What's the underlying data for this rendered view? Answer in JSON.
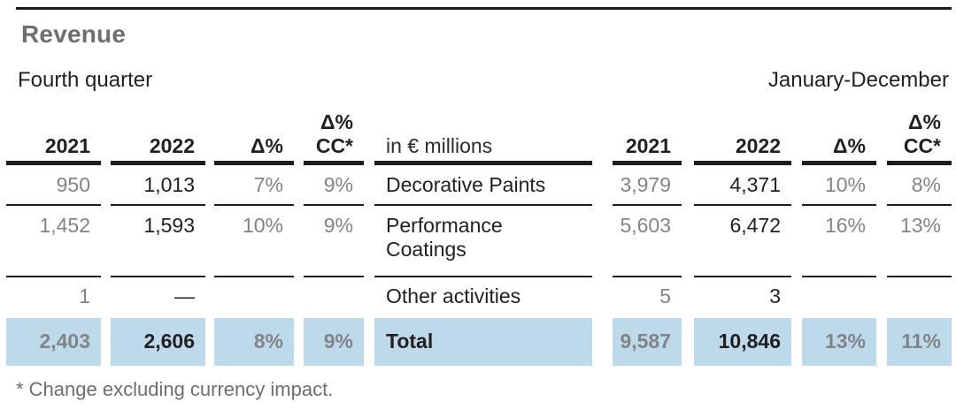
{
  "page": {
    "title": "Revenue",
    "left_period": "Fourth quarter",
    "right_period": "January-December",
    "footnote": "* Change excluding currency impact."
  },
  "colors": {
    "highlight_blue": "#bddaeb",
    "muted_gray_text": "#838487",
    "black_text": "#231f20",
    "title_gray": "#6d6e71"
  },
  "table": {
    "unit_label": "in € millions",
    "headers": {
      "y2021": "2021",
      "y2022": "2022",
      "delta": "Δ%",
      "delta_cc_line1": "Δ%",
      "delta_cc_line2": "CC*"
    },
    "rows": [
      {
        "name": "Decorative Paints",
        "q4_2021": "950",
        "q4_2022": "1,013",
        "q4_delta": "7%",
        "q4_delta_cc": "9%",
        "fy_2021": "3,979",
        "fy_2022": "4,371",
        "fy_delta": "10%",
        "fy_delta_cc": "8%"
      },
      {
        "name": "Performance Coatings",
        "q4_2021": "1,452",
        "q4_2022": "1,593",
        "q4_delta": "10%",
        "q4_delta_cc": "9%",
        "fy_2021": "5,603",
        "fy_2022": "6,472",
        "fy_delta": "16%",
        "fy_delta_cc": "13%"
      },
      {
        "name": "Other activities",
        "q4_2021": "1",
        "q4_2022": "—",
        "q4_delta": "",
        "q4_delta_cc": "",
        "fy_2021": "5",
        "fy_2022": "3",
        "fy_delta": "",
        "fy_delta_cc": ""
      },
      {
        "name": "Total",
        "q4_2021": "2,403",
        "q4_2022": "2,606",
        "q4_delta": "8%",
        "q4_delta_cc": "9%",
        "fy_2021": "9,587",
        "fy_2022": "10,846",
        "fy_delta": "13%",
        "fy_delta_cc": "11%"
      }
    ]
  }
}
